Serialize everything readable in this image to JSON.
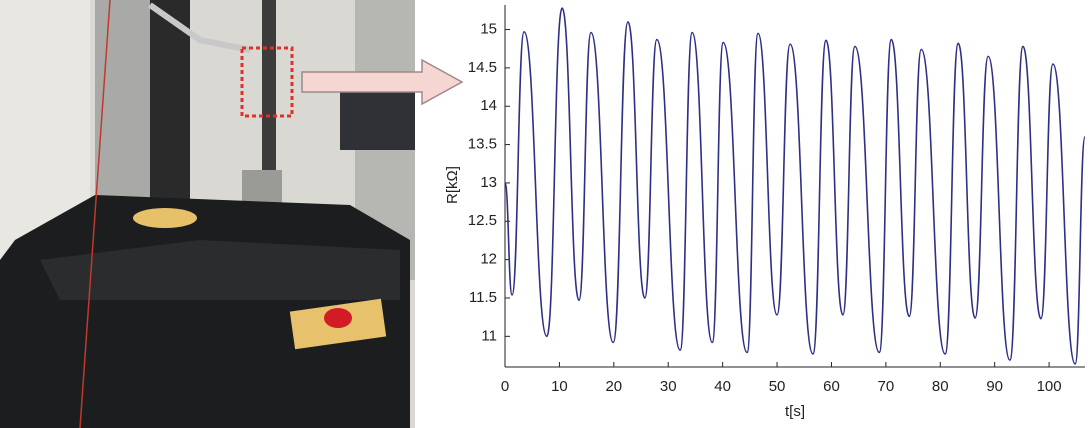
{
  "chart_data": {
    "type": "line",
    "xlabel": "t[s]",
    "ylabel": "R[kΩ]",
    "x": [
      0,
      1.3,
      3.5,
      7.7,
      10.5,
      13.6,
      15.8,
      19.9,
      22.6,
      25.7,
      27.9,
      32.2,
      34.4,
      38.1,
      40.1,
      44.5,
      46.5,
      50,
      52.4,
      56.6,
      59,
      62.1,
      64.3,
      68.8,
      71,
      74.3,
      76.5,
      80.9,
      83.3,
      86.4,
      88.8,
      92.8,
      95.2,
      98.5,
      100.7,
      104.8,
      106.6
    ],
    "series": [
      {
        "color": "#2e2f86",
        "values": [
          13.0,
          11.54,
          14.97,
          11.0,
          15.28,
          11.47,
          14.96,
          10.92,
          15.1,
          11.5,
          14.87,
          10.82,
          14.96,
          10.92,
          14.83,
          10.79,
          14.95,
          11.28,
          14.81,
          10.77,
          14.86,
          11.28,
          14.78,
          10.79,
          14.87,
          11.26,
          14.74,
          10.77,
          14.82,
          11.24,
          14.65,
          10.69,
          14.78,
          11.23,
          14.55,
          10.64,
          13.6
        ]
      }
    ],
    "xlim": [
      0,
      106.6
    ],
    "ylim": [
      10.6,
      15.32
    ],
    "xticks": [
      0,
      10,
      20,
      30,
      40,
      50,
      60,
      70,
      80,
      90,
      100
    ],
    "yticks": [
      11,
      11.5,
      12,
      12.5,
      13,
      13.5,
      14,
      14.5,
      15
    ]
  }
}
